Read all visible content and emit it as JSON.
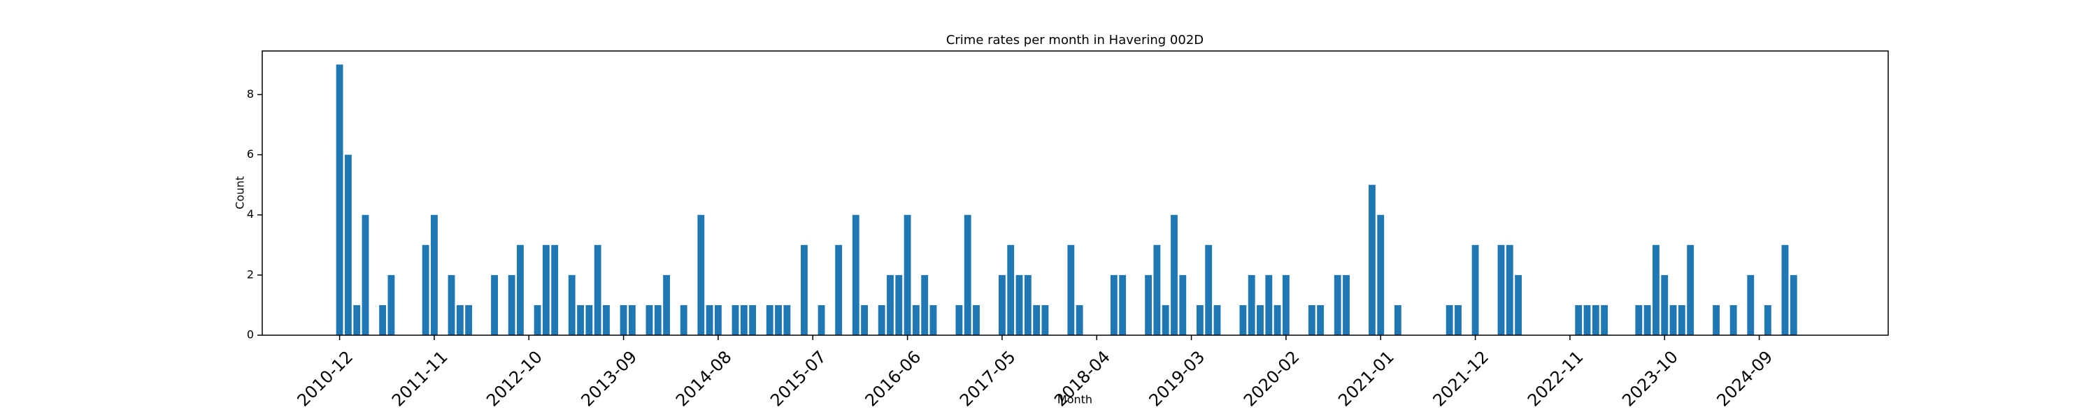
{
  "chart_data": {
    "type": "bar",
    "title": "Crime rates per month in Havering 002D",
    "x_label": "Month",
    "y_label": "Count",
    "color": "#1f77b4",
    "categories": [
      "2010-12",
      null,
      null,
      null,
      null,
      null,
      null,
      null,
      null,
      null,
      null,
      "2011-11",
      null,
      null,
      null,
      null,
      null,
      null,
      null,
      null,
      null,
      null,
      "2012-10",
      null,
      null,
      null,
      null,
      null,
      null,
      null,
      null,
      null,
      null,
      "2013-09",
      null,
      null,
      null,
      null,
      null,
      null,
      null,
      null,
      null,
      null,
      "2014-08",
      null,
      null,
      null,
      null,
      null,
      null,
      null,
      null,
      null,
      null,
      "2015-07",
      null,
      null,
      null,
      null,
      null,
      null,
      null,
      null,
      null,
      null,
      "2016-06",
      null,
      null,
      null,
      null,
      null,
      null,
      null,
      null,
      null,
      null,
      "2017-05",
      null,
      null,
      null,
      null,
      null,
      null,
      null,
      null,
      null,
      null,
      "2018-04",
      null,
      null,
      null,
      null,
      null,
      null,
      null,
      null,
      null,
      null,
      "2019-03",
      null,
      null,
      null,
      null,
      null,
      null,
      null,
      null,
      null,
      null,
      "2020-02",
      null,
      null,
      null,
      null,
      null,
      null,
      null,
      null,
      null,
      null,
      "2021-01",
      null,
      null,
      null,
      null,
      null,
      null,
      null,
      null,
      null,
      null,
      "2021-12",
      null,
      null,
      null,
      null,
      null,
      null,
      null,
      null,
      null,
      null,
      "2022-11",
      null,
      null,
      null,
      null,
      null,
      null,
      null,
      null,
      null,
      null,
      "2023-10",
      null,
      null,
      null,
      null,
      null,
      null,
      null,
      null,
      null,
      null,
      "2024-09",
      null,
      null,
      null,
      null,
      null,
      null
    ],
    "values": [
      9,
      6,
      1,
      4,
      0,
      1,
      2,
      0,
      0,
      0,
      3,
      4,
      0,
      2,
      1,
      1,
      0,
      0,
      2,
      0,
      2,
      3,
      0,
      1,
      3,
      3,
      0,
      2,
      1,
      1,
      3,
      1,
      0,
      1,
      1,
      0,
      1,
      1,
      2,
      0,
      1,
      0,
      4,
      1,
      1,
      0,
      1,
      1,
      1,
      0,
      1,
      1,
      1,
      0,
      3,
      0,
      1,
      0,
      3,
      0,
      4,
      1,
      0,
      1,
      2,
      2,
      4,
      1,
      2,
      1,
      0,
      0,
      1,
      4,
      1,
      0,
      0,
      2,
      3,
      2,
      2,
      1,
      1,
      0,
      0,
      3,
      1,
      0,
      0,
      0,
      2,
      2,
      0,
      0,
      2,
      3,
      1,
      4,
      2,
      0,
      1,
      3,
      1,
      0,
      0,
      1,
      2,
      1,
      2,
      1,
      2,
      0,
      0,
      1,
      1,
      0,
      2,
      2,
      0,
      0,
      5,
      4,
      0,
      1,
      0,
      0,
      0,
      0,
      0,
      1,
      1,
      0,
      3,
      0,
      0,
      3,
      3,
      2,
      0,
      0,
      0,
      0,
      0,
      0,
      1,
      1,
      1,
      1,
      0,
      0,
      0,
      1,
      1,
      3,
      2,
      1,
      1,
      3,
      0,
      0,
      1,
      0,
      1,
      0,
      2,
      0,
      1,
      0,
      3,
      2,
      0,
      0
    ],
    "ylim": [
      0,
      9.45
    ],
    "yticks": [
      0,
      2,
      4,
      6,
      8
    ],
    "grid": false
  }
}
